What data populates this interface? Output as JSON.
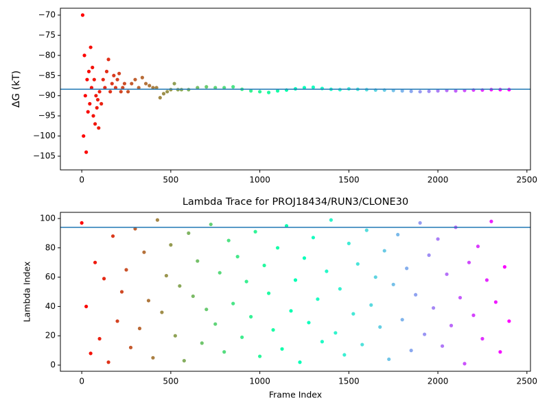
{
  "chart_data": [
    {
      "type": "scatter",
      "ylabel": "ΔG (kT)",
      "colormap": "rainbow_r",
      "hline": -88.4,
      "hline_color": "#1f77b4",
      "x": [
        5,
        10,
        15,
        20,
        25,
        30,
        35,
        40,
        45,
        50,
        55,
        60,
        65,
        70,
        75,
        80,
        85,
        90,
        95,
        100,
        110,
        120,
        130,
        140,
        150,
        160,
        170,
        180,
        190,
        200,
        210,
        220,
        230,
        240,
        260,
        280,
        300,
        320,
        340,
        360,
        380,
        400,
        420,
        440,
        460,
        480,
        500,
        520,
        540,
        560,
        600,
        650,
        700,
        750,
        800,
        850,
        900,
        950,
        1000,
        1050,
        1100,
        1150,
        1200,
        1250,
        1300,
        1350,
        1400,
        1450,
        1500,
        1550,
        1600,
        1650,
        1700,
        1750,
        1800,
        1850,
        1900,
        1950,
        2000,
        2050,
        2100,
        2150,
        2200,
        2250,
        2300,
        2350,
        2400
      ],
      "y": [
        -70,
        -100,
        -80,
        -90,
        -104,
        -86,
        -94,
        -84,
        -92,
        -78,
        -88,
        -83,
        -95,
        -86,
        -97,
        -90,
        -93,
        -91,
        -98,
        -89,
        -92,
        -86,
        -88,
        -84,
        -81,
        -89,
        -87,
        -85,
        -88,
        -86,
        -84.5,
        -89,
        -88,
        -87,
        -89,
        -87,
        -86,
        -88,
        -85.5,
        -87,
        -87.5,
        -88,
        -88,
        -90.5,
        -89.5,
        -89,
        -88.5,
        -87,
        -88.5,
        -88.5,
        -88.5,
        -88,
        -87.8,
        -88,
        -88,
        -87.8,
        -88.4,
        -88.8,
        -89,
        -89.2,
        -88.8,
        -88.6,
        -88.3,
        -88,
        -87.9,
        -88.2,
        -88.4,
        -88.5,
        -88.3,
        -88.4,
        -88.5,
        -88.6,
        -88.6,
        -88.7,
        -88.8,
        -88.9,
        -89,
        -88.9,
        -88.8,
        -88.7,
        -88.8,
        -88.7,
        -88.6,
        -88.6,
        -88.5,
        -88.5,
        -88.5
      ],
      "xlim": [
        -120,
        2520
      ],
      "ylim": [
        -108.4,
        -68.3
      ],
      "xticks": [
        0,
        500,
        1000,
        1500,
        2000,
        2500
      ],
      "yticks": [
        {
          "value": -105,
          "label": "−105"
        },
        {
          "value": -100,
          "label": "−100"
        },
        {
          "value": -95,
          "label": "−95"
        },
        {
          "value": -90,
          "label": "−90"
        },
        {
          "value": -85,
          "label": "−85"
        },
        {
          "value": -80,
          "label": "−80"
        },
        {
          "value": -75,
          "label": "−75"
        },
        {
          "value": -70,
          "label": "−70"
        }
      ]
    },
    {
      "type": "scatter",
      "title": "Lambda Trace for PROJ18434/RUN3/CLONE30",
      "xlabel": "Frame Index",
      "ylabel": "Lambda Index",
      "colormap": "rainbow_r",
      "hline": 94,
      "hline_color": "#1f77b4",
      "x": [
        0,
        25,
        50,
        75,
        100,
        125,
        150,
        175,
        200,
        225,
        250,
        275,
        300,
        325,
        350,
        375,
        400,
        425,
        450,
        475,
        500,
        525,
        550,
        575,
        600,
        625,
        650,
        675,
        700,
        725,
        750,
        775,
        800,
        825,
        850,
        875,
        900,
        925,
        950,
        975,
        1000,
        1025,
        1050,
        1075,
        1100,
        1125,
        1150,
        1175,
        1200,
        1225,
        1250,
        1275,
        1300,
        1325,
        1350,
        1375,
        1400,
        1425,
        1450,
        1475,
        1500,
        1525,
        1550,
        1575,
        1600,
        1625,
        1650,
        1675,
        1700,
        1725,
        1750,
        1775,
        1800,
        1825,
        1850,
        1875,
        1900,
        1925,
        1950,
        1975,
        2000,
        2025,
        2050,
        2075,
        2100,
        2125,
        2150,
        2175,
        2200,
        2225,
        2250,
        2275,
        2300,
        2325,
        2350,
        2375,
        2400
      ],
      "y": [
        97,
        40,
        8,
        70,
        18,
        59,
        2,
        88,
        30,
        50,
        65,
        12,
        93,
        25,
        77,
        44,
        5,
        99,
        36,
        61,
        82,
        20,
        54,
        3,
        90,
        47,
        71,
        15,
        38,
        96,
        28,
        63,
        9,
        85,
        42,
        74,
        19,
        57,
        33,
        91,
        6,
        68,
        49,
        24,
        80,
        11,
        95,
        37,
        58,
        2,
        73,
        29,
        87,
        45,
        16,
        64,
        99,
        22,
        52,
        7,
        83,
        35,
        69,
        14,
        92,
        41,
        60,
        26,
        78,
        4,
        55,
        89,
        31,
        66,
        10,
        48,
        97,
        21,
        75,
        39,
        86,
        13,
        62,
        27,
        94,
        46,
        1,
        70,
        34,
        81,
        18,
        58,
        98,
        43,
        9,
        67,
        30
      ],
      "xlim": [
        -120,
        2520
      ],
      "ylim": [
        -4.2,
        104.2
      ],
      "xticks": [
        0,
        500,
        1000,
        1500,
        2000,
        2500
      ],
      "yticks": [
        0,
        20,
        40,
        60,
        80,
        100
      ]
    }
  ]
}
